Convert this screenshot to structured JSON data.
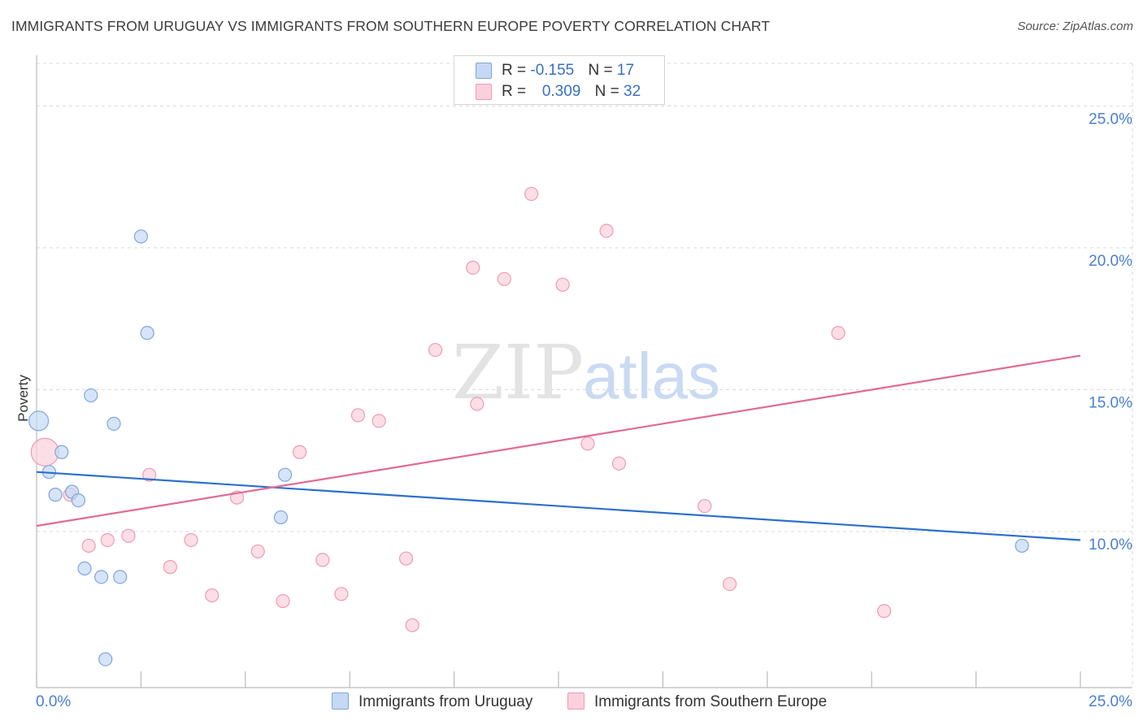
{
  "title": "IMMIGRANTS FROM URUGUAY VS IMMIGRANTS FROM SOUTHERN EUROPE POVERTY CORRELATION CHART",
  "source": "Source: ZipAtlas.com",
  "watermark": {
    "zip": "ZIP",
    "atlas": "atlas"
  },
  "legend": {
    "uruguay": {
      "r_label": "R = ",
      "r_value": "-0.155",
      "n_label": "N = ",
      "n_value": "17"
    },
    "southern_europe": {
      "r_label": "R = ",
      "r_value": "0.309",
      "n_label": "N = ",
      "n_value": "32"
    }
  },
  "colors": {
    "uruguay_fill": "#c5d8f5",
    "uruguay_stroke": "#7fa6de",
    "uruguay_line": "#2c6fcd",
    "southern_fill": "#fbd0dc",
    "southern_stroke": "#ee9bb4",
    "southern_line": "#e26a92",
    "grid": "#d9d9d9",
    "tick_text": "#4a7fd0"
  },
  "chart_data": {
    "type": "scatter",
    "title": "IMMIGRANTS FROM URUGUAY VS IMMIGRANTS FROM SOUTHERN EUROPE POVERTY CORRELATION CHART",
    "xlabel": "",
    "ylabel": "Poverty",
    "xlim": [
      0,
      25
    ],
    "ylim": [
      4.5,
      26.5
    ],
    "x_tick_labels": [
      "0.0%",
      "25.0%"
    ],
    "y_ticks": [
      10,
      15,
      20,
      25
    ],
    "y_tick_labels": [
      "10.0%",
      "15.0%",
      "20.0%",
      "25.0%"
    ],
    "grid": true,
    "legend_position": "top-center",
    "series": [
      {
        "name": "Immigrants from Uruguay",
        "r": -0.155,
        "n": 17,
        "trend": {
          "x": [
            0,
            25
          ],
          "y": [
            12.1,
            9.7
          ]
        },
        "points": [
          {
            "x": 0.05,
            "y": 13.9,
            "big": true
          },
          {
            "x": 2.5,
            "y": 20.4
          },
          {
            "x": 2.65,
            "y": 17.0
          },
          {
            "x": 1.3,
            "y": 14.8
          },
          {
            "x": 1.85,
            "y": 13.8
          },
          {
            "x": 0.6,
            "y": 12.8
          },
          {
            "x": 0.3,
            "y": 12.1
          },
          {
            "x": 0.45,
            "y": 11.3
          },
          {
            "x": 0.85,
            "y": 11.4
          },
          {
            "x": 1.0,
            "y": 11.1
          },
          {
            "x": 5.95,
            "y": 12.0
          },
          {
            "x": 5.85,
            "y": 10.5
          },
          {
            "x": 1.15,
            "y": 8.7
          },
          {
            "x": 1.55,
            "y": 8.4
          },
          {
            "x": 2.0,
            "y": 8.4
          },
          {
            "x": 1.65,
            "y": 5.5
          },
          {
            "x": 23.6,
            "y": 9.5
          }
        ]
      },
      {
        "name": "Immigrants from Southern Europe",
        "r": 0.309,
        "n": 32,
        "trend": {
          "x": [
            0,
            25
          ],
          "y": [
            10.2,
            16.2
          ]
        },
        "points": [
          {
            "x": 0.2,
            "y": 12.8,
            "big": true
          },
          {
            "x": 11.85,
            "y": 21.9
          },
          {
            "x": 13.65,
            "y": 20.6
          },
          {
            "x": 10.45,
            "y": 19.3
          },
          {
            "x": 11.2,
            "y": 18.9
          },
          {
            "x": 12.6,
            "y": 18.7
          },
          {
            "x": 19.2,
            "y": 17.0
          },
          {
            "x": 9.55,
            "y": 16.4
          },
          {
            "x": 10.55,
            "y": 14.5
          },
          {
            "x": 7.7,
            "y": 14.1
          },
          {
            "x": 8.2,
            "y": 13.9
          },
          {
            "x": 13.2,
            "y": 13.1
          },
          {
            "x": 6.3,
            "y": 12.8
          },
          {
            "x": 13.95,
            "y": 12.4
          },
          {
            "x": 2.7,
            "y": 12.0
          },
          {
            "x": 0.8,
            "y": 11.3
          },
          {
            "x": 4.8,
            "y": 11.2
          },
          {
            "x": 16.0,
            "y": 10.9
          },
          {
            "x": 2.2,
            "y": 9.85
          },
          {
            "x": 1.7,
            "y": 9.7
          },
          {
            "x": 1.25,
            "y": 9.5
          },
          {
            "x": 3.7,
            "y": 9.7
          },
          {
            "x": 5.3,
            "y": 9.3
          },
          {
            "x": 6.85,
            "y": 9.0
          },
          {
            "x": 8.85,
            "y": 9.05
          },
          {
            "x": 3.2,
            "y": 8.75
          },
          {
            "x": 16.6,
            "y": 8.15
          },
          {
            "x": 4.2,
            "y": 7.75
          },
          {
            "x": 5.9,
            "y": 7.55
          },
          {
            "x": 7.3,
            "y": 7.8
          },
          {
            "x": 20.3,
            "y": 7.2
          },
          {
            "x": 9.0,
            "y": 6.7
          }
        ]
      }
    ]
  }
}
